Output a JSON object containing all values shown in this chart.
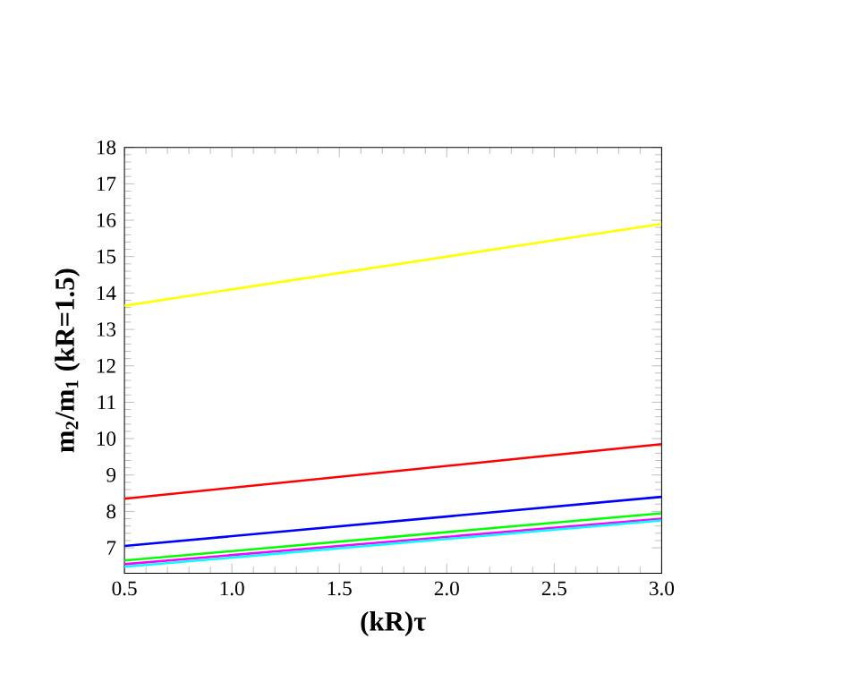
{
  "chart_data": {
    "type": "line",
    "xlabel": "(kR)τ",
    "ylabel": "m$_{2}$/m$_{1}$ (kR=1.5)",
    "x": [
      0.5,
      3.0
    ],
    "series": [
      {
        "color": "#ffff00",
        "values": [
          13.65,
          15.9
        ]
      },
      {
        "color": "#ff0000",
        "values": [
          8.35,
          9.85
        ]
      },
      {
        "color": "#0000ff",
        "values": [
          7.05,
          8.4
        ]
      },
      {
        "color": "#00ff00",
        "values": [
          6.65,
          7.95
        ]
      },
      {
        "color": "#ff00ff",
        "values": [
          6.55,
          7.8
        ]
      },
      {
        "color": "#00ffff",
        "values": [
          6.48,
          7.75
        ]
      }
    ],
    "xlim": [
      0.5,
      3.0
    ],
    "ylim": [
      6.3,
      18
    ],
    "xticks": [
      {
        "value": 0.5,
        "label": "0.5"
      },
      {
        "value": 1.0,
        "label": "1.0"
      },
      {
        "value": 1.5,
        "label": "1.5"
      },
      {
        "value": 2.0,
        "label": "2.0"
      },
      {
        "value": 2.5,
        "label": "2.5"
      },
      {
        "value": 3.0,
        "label": "3.0"
      }
    ],
    "yticks": [
      7,
      8,
      9,
      10,
      11,
      12,
      13,
      14,
      15,
      16,
      17,
      18
    ],
    "marker": "none",
    "line_style": "solid"
  }
}
